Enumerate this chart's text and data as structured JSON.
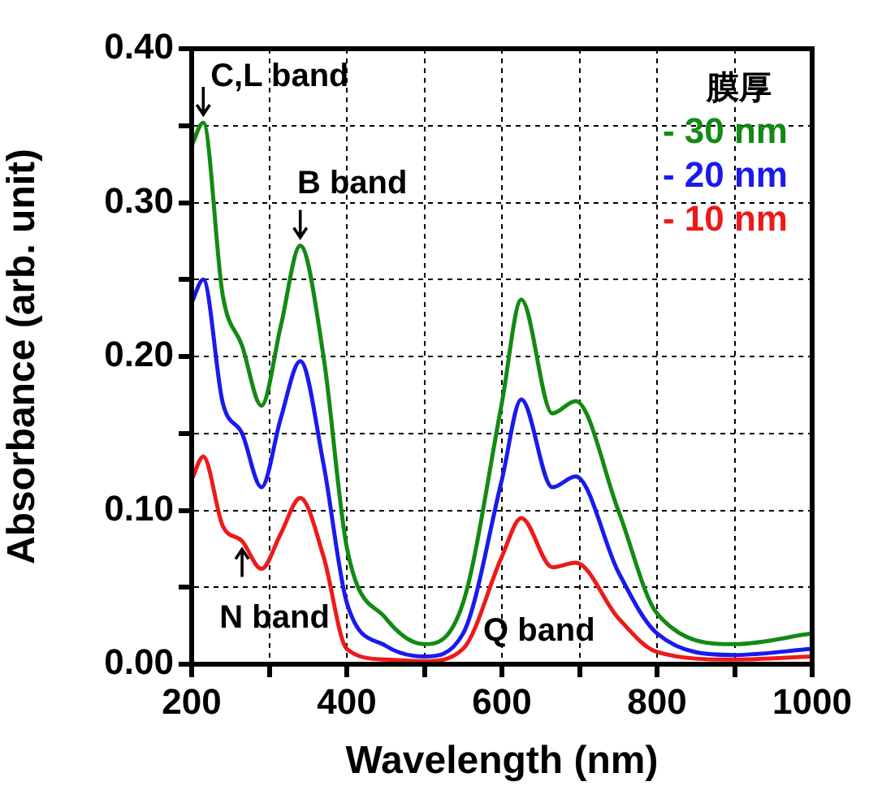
{
  "chart_data": {
    "type": "line",
    "xlabel": "Wavelength (nm)",
    "ylabel": "Absorbance (arb. unit)",
    "legend_title": "膜厚",
    "legend": "top right",
    "grid": true,
    "marker": "none",
    "line_style": "solid",
    "xlim": [
      200,
      1000
    ],
    "xticks": [
      200,
      {
        "value": 300,
        "label": null
      },
      400,
      {
        "value": 500,
        "label": null
      },
      600,
      {
        "value": 700,
        "label": null
      },
      800,
      {
        "value": 900,
        "label": null
      },
      1000
    ],
    "ylim": [
      0,
      0.4
    ],
    "yticks": [
      {
        "value": 0,
        "label": "0.00"
      },
      {
        "value": 0.05,
        "label": null
      },
      {
        "value": 0.1,
        "label": "0.10"
      },
      {
        "value": 0.15,
        "label": null
      },
      {
        "value": 0.2,
        "label": "0.20"
      },
      {
        "value": 0.25,
        "label": null
      },
      {
        "value": 0.3,
        "label": "0.30"
      },
      {
        "value": 0.35,
        "label": null
      },
      {
        "value": 0.4,
        "label": "0.40"
      }
    ],
    "x": [
      200,
      215,
      240,
      265,
      290,
      315,
      340,
      370,
      400,
      450,
      500,
      550,
      600,
      625,
      665,
      695,
      750,
      800,
      900,
      1000
    ],
    "series": [
      {
        "name": "- 30 nm",
        "color": "#138a13",
        "values": [
          0.337,
          0.352,
          0.24,
          0.207,
          0.168,
          0.22,
          0.272,
          0.2,
          0.076,
          0.03,
          0.013,
          0.04,
          0.17,
          0.237,
          0.163,
          0.171,
          0.1,
          0.033,
          0.013,
          0.02
        ]
      },
      {
        "name": "- 20 nm",
        "color": "#1a1aee",
        "values": [
          0.235,
          0.25,
          0.17,
          0.15,
          0.115,
          0.16,
          0.197,
          0.13,
          0.04,
          0.012,
          0.005,
          0.02,
          0.12,
          0.172,
          0.115,
          0.122,
          0.06,
          0.02,
          0.006,
          0.01
        ]
      },
      {
        "name": "- 10 nm",
        "color": "#ee1a1a",
        "values": [
          0.12,
          0.135,
          0.09,
          0.08,
          0.062,
          0.085,
          0.108,
          0.07,
          0.01,
          0.003,
          0.002,
          0.01,
          0.07,
          0.095,
          0.063,
          0.066,
          0.03,
          0.008,
          0.003,
          0.005
        ]
      }
    ],
    "annotations": [
      {
        "text": "C,L band",
        "x": 215,
        "y": 0.352
      },
      {
        "text": "B band",
        "x": 340,
        "y": 0.272
      },
      {
        "text": "N band",
        "x": 265,
        "y": 0.08
      },
      "Q band"
    ]
  }
}
